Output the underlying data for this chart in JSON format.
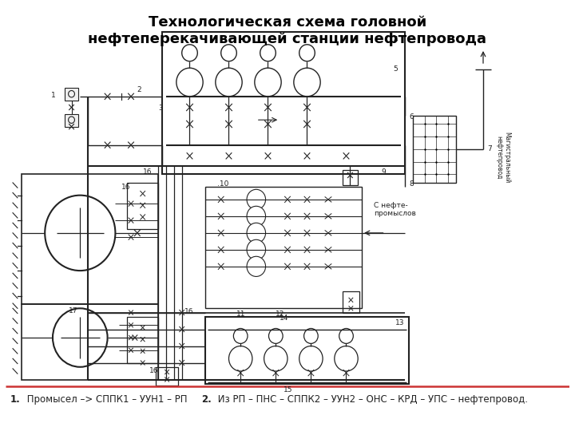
{
  "title": "Технологическая схема головной\nнефтеперекачивающей станции нефтепровода",
  "title_fontsize": 13,
  "title_fontweight": "bold",
  "fn_bold1": "1.",
  "fn_text1": " Промысел –> СППК1 – УУН1 – РП  ",
  "fn_bold2": "2.",
  "fn_text2": " Из РП – ПНС – СППК2 – УУН2 – ОНС – КРД – УПС – нефтепровод.",
  "lc": "#222222",
  "bg": "white"
}
